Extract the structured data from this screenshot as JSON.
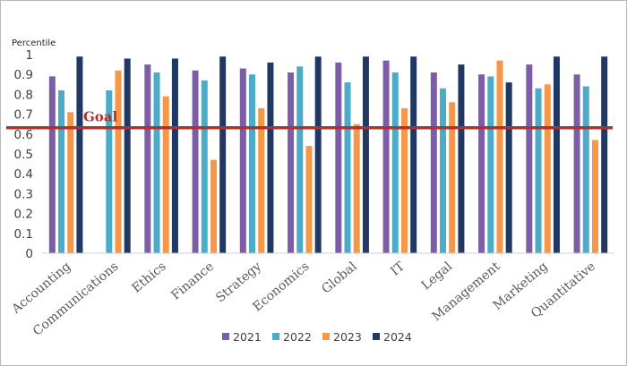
{
  "chart_data": {
    "type": "bar",
    "title": "",
    "ylabel": "Percentile",
    "xlabel": "",
    "ylim": [
      0,
      1
    ],
    "yticks": [
      "0",
      "0.1",
      "0.2",
      "0.3",
      "0.4",
      "0.5",
      "0.6",
      "0.7",
      "0.8",
      "0.9",
      "1"
    ],
    "grid": false,
    "legend_position": "bottom",
    "categories": [
      "Accounting",
      "Communications",
      "Ethics",
      "Finance",
      "Strategy",
      "Economics",
      "Global",
      "IT",
      "Legal",
      "Management",
      "Marketing",
      "Quantitative"
    ],
    "series": [
      {
        "name": "2021",
        "color": "#7b5ea7",
        "values": [
          0.89,
          null,
          0.95,
          0.92,
          0.93,
          0.91,
          0.96,
          0.97,
          0.91,
          0.9,
          0.95,
          0.9
        ]
      },
      {
        "name": "2022",
        "color": "#4aacc6",
        "values": [
          0.82,
          0.82,
          0.91,
          0.87,
          0.9,
          0.94,
          0.86,
          0.91,
          0.83,
          0.89,
          0.83,
          0.84
        ]
      },
      {
        "name": "2023",
        "color": "#f79646",
        "values": [
          0.71,
          0.92,
          0.79,
          0.47,
          0.73,
          0.54,
          0.65,
          0.73,
          0.76,
          0.97,
          0.85,
          0.57
        ]
      },
      {
        "name": "2024",
        "color": "#1f3864",
        "values": [
          0.99,
          0.98,
          0.98,
          0.99,
          0.96,
          0.99,
          0.99,
          0.99,
          0.95,
          0.86,
          0.99,
          0.99
        ]
      }
    ],
    "goal": {
      "label": "Goal",
      "value": 0.65,
      "color": "#b0302c"
    }
  }
}
